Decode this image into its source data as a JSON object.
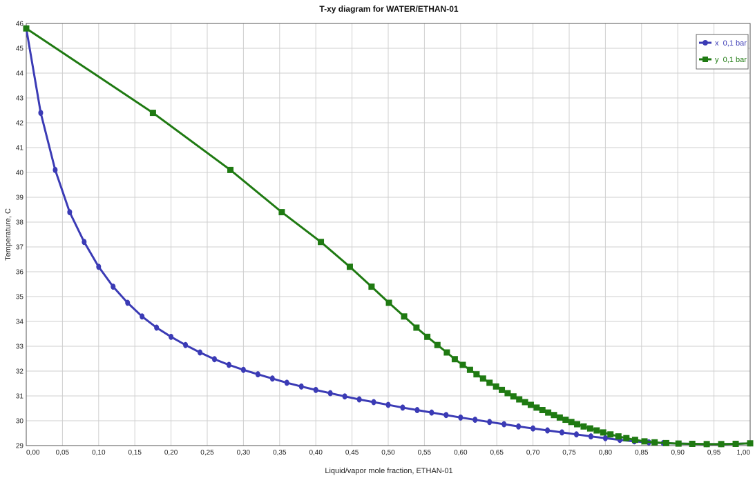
{
  "chart_data": {
    "type": "line",
    "title": "T-xy diagram for WATER/ETHAN-01",
    "xlabel": "Liquid/vapor mole fraction, ETHAN-01",
    "ylabel": "Temperature, C",
    "xlim": [
      0,
      1
    ],
    "ylim": [
      29,
      46
    ],
    "grid": true,
    "legend_position": "top-right",
    "x_tick_labels": [
      "0,00",
      "0,05",
      "0,10",
      "0,15",
      "0,20",
      "0,25",
      "0,30",
      "0,35",
      "0,40",
      "0,45",
      "0,50",
      "0,55",
      "0,60",
      "0,65",
      "0,70",
      "0,75",
      "0,80",
      "0,85",
      "0,90",
      "0,95",
      "1,00"
    ],
    "y_tick_labels": [
      "29",
      "30",
      "31",
      "32",
      "33",
      "34",
      "35",
      "36",
      "37",
      "38",
      "39",
      "40",
      "41",
      "42",
      "43",
      "44",
      "45",
      "46"
    ],
    "series": [
      {
        "name": "x  0,1 bar",
        "color": "#3b3bb5",
        "marker": "circle",
        "x": [
          0.0,
          0.02,
          0.04,
          0.06,
          0.08,
          0.1,
          0.12,
          0.14,
          0.16,
          0.18,
          0.2,
          0.22,
          0.24,
          0.26,
          0.28,
          0.3,
          0.32,
          0.34,
          0.36,
          0.38,
          0.4,
          0.42,
          0.44,
          0.46,
          0.48,
          0.5,
          0.52,
          0.54,
          0.56,
          0.58,
          0.6,
          0.62,
          0.64,
          0.66,
          0.68,
          0.7,
          0.72,
          0.74,
          0.76,
          0.78,
          0.8,
          0.82,
          0.84,
          0.86,
          0.88,
          0.9,
          0.92,
          0.94,
          0.96,
          0.98,
          1.0
        ],
        "y": [
          45.8,
          42.4,
          40.1,
          38.4,
          37.2,
          36.2,
          35.4,
          34.75,
          34.2,
          33.75,
          33.38,
          33.05,
          32.75,
          32.48,
          32.25,
          32.05,
          31.87,
          31.7,
          31.53,
          31.38,
          31.24,
          31.11,
          30.98,
          30.86,
          30.75,
          30.64,
          30.53,
          30.43,
          30.33,
          30.23,
          30.13,
          30.04,
          29.95,
          29.86,
          29.77,
          29.69,
          29.61,
          29.53,
          29.45,
          29.37,
          29.3,
          29.23,
          29.17,
          29.13,
          29.1,
          29.08,
          29.07,
          29.06,
          29.06,
          29.07,
          29.09
        ]
      },
      {
        "name": "y  0,1 bar",
        "color": "#1f7a12",
        "marker": "square",
        "x": [
          0.0,
          0.175,
          0.282,
          0.353,
          0.407,
          0.447,
          0.477,
          0.501,
          0.522,
          0.539,
          0.554,
          0.568,
          0.581,
          0.592,
          0.603,
          0.613,
          0.622,
          0.631,
          0.64,
          0.649,
          0.657,
          0.665,
          0.673,
          0.681,
          0.689,
          0.697,
          0.705,
          0.713,
          0.721,
          0.729,
          0.737,
          0.745,
          0.753,
          0.761,
          0.77,
          0.779,
          0.788,
          0.797,
          0.807,
          0.818,
          0.829,
          0.841,
          0.854,
          0.868,
          0.884,
          0.901,
          0.92,
          0.94,
          0.96,
          0.98,
          1.0
        ],
        "y": [
          45.8,
          42.4,
          40.1,
          38.4,
          37.2,
          36.2,
          35.4,
          34.75,
          34.2,
          33.75,
          33.38,
          33.05,
          32.75,
          32.48,
          32.25,
          32.05,
          31.87,
          31.7,
          31.53,
          31.38,
          31.24,
          31.11,
          30.98,
          30.86,
          30.75,
          30.64,
          30.53,
          30.43,
          30.33,
          30.23,
          30.13,
          30.04,
          29.95,
          29.86,
          29.77,
          29.69,
          29.61,
          29.53,
          29.45,
          29.37,
          29.3,
          29.23,
          29.17,
          29.13,
          29.1,
          29.08,
          29.07,
          29.06,
          29.06,
          29.07,
          29.09
        ]
      }
    ]
  }
}
